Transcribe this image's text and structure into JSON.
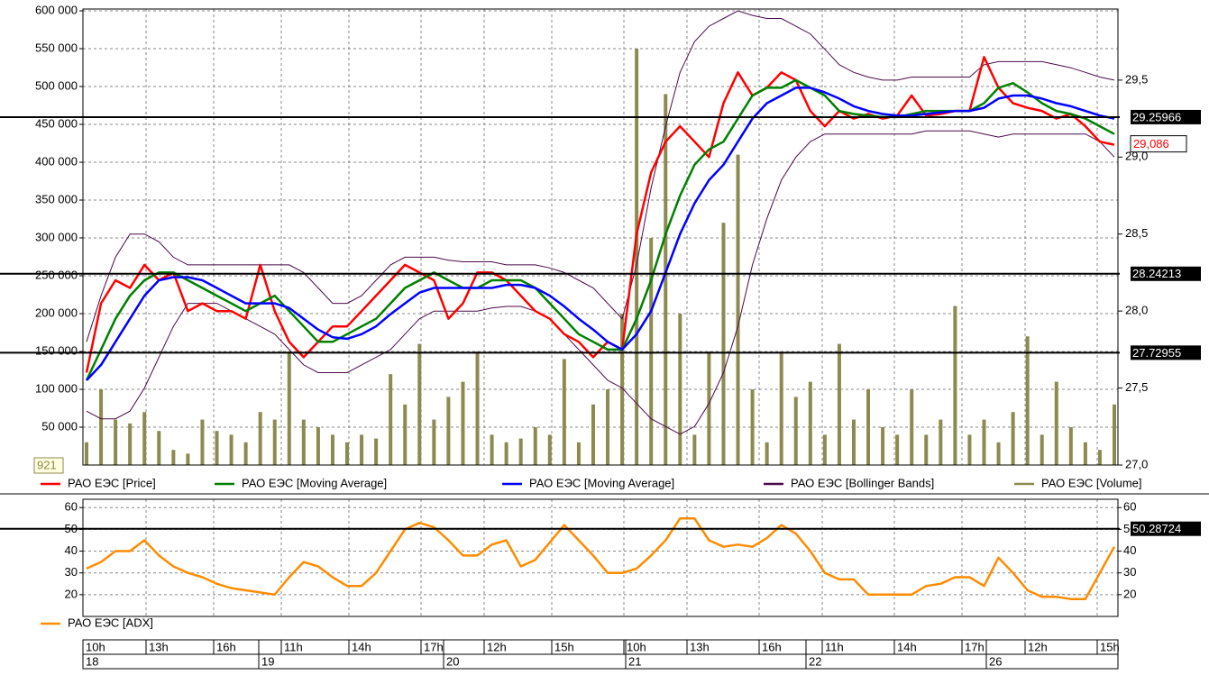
{
  "chart_data": [
    {
      "type": "line",
      "ylim": [
        0,
        600000
      ],
      "yticks": [
        {
          "value": 50000,
          "label": "50 000"
        },
        {
          "value": 100000,
          "label": "100 000"
        },
        {
          "value": 150000,
          "label": "150 000"
        },
        {
          "value": 200000,
          "label": "200 000"
        },
        {
          "value": 250000,
          "label": "250 000"
        },
        {
          "value": 300000,
          "label": "300 000"
        },
        {
          "value": 350000,
          "label": "350 000"
        },
        {
          "value": 400000,
          "label": "400 000"
        },
        {
          "value": 450000,
          "label": "450 000"
        },
        {
          "value": 500000,
          "label": "500 000"
        },
        {
          "value": 550000,
          "label": "550 000"
        },
        {
          "value": 600000,
          "label": "600 000"
        }
      ],
      "y2lim": [
        27.0,
        29.95
      ],
      "y2ticks": [
        {
          "value": 27.0,
          "label": "27,0"
        },
        {
          "value": 27.5,
          "label": "27,5"
        },
        {
          "value": 28.0,
          "label": "28,0"
        },
        {
          "value": 28.5,
          "label": "28,5"
        },
        {
          "value": 29.0,
          "label": "29,0"
        },
        {
          "value": 29.5,
          "label": "29,5"
        }
      ],
      "grid": true,
      "hlines": [
        29.25966,
        28.24213,
        27.72955
      ],
      "last_price": {
        "value": 29.086,
        "label": "29,086"
      },
      "last_volume": 921,
      "series": [
        {
          "name": "РАО ЕЭС [Price]",
          "color": "#ff0000",
          "axis": "y2",
          "values": [
            27.6,
            28.05,
            28.2,
            28.15,
            28.3,
            28.2,
            28.25,
            28.0,
            28.05,
            28.0,
            28.0,
            27.95,
            28.3,
            28.0,
            27.8,
            27.7,
            27.8,
            27.9,
            27.9,
            28.0,
            28.1,
            28.2,
            28.3,
            28.25,
            28.2,
            27.95,
            28.05,
            28.25,
            28.25,
            28.2,
            28.1,
            28.0,
            27.95,
            27.85,
            27.8,
            27.7,
            27.8,
            27.75,
            28.5,
            28.9,
            29.1,
            29.2,
            29.1,
            29.0,
            29.35,
            29.55,
            29.4,
            29.45,
            29.55,
            29.5,
            29.3,
            29.2,
            29.3,
            29.25,
            29.28,
            29.25,
            29.27,
            29.4,
            29.27,
            29.28,
            29.3,
            29.3,
            29.65,
            29.45,
            29.35,
            29.32,
            29.3,
            29.25,
            29.28,
            29.2,
            29.1,
            29.08
          ]
        },
        {
          "name": "РАО ЕЭС [Moving Average]",
          "color": "#008000",
          "axis": "y2",
          "values": [
            27.55,
            27.75,
            27.95,
            28.1,
            28.2,
            28.25,
            28.25,
            28.2,
            28.15,
            28.1,
            28.05,
            28.0,
            28.05,
            28.1,
            28.0,
            27.9,
            27.8,
            27.8,
            27.85,
            27.9,
            27.95,
            28.05,
            28.15,
            28.2,
            28.25,
            28.2,
            28.15,
            28.15,
            28.2,
            28.2,
            28.2,
            28.15,
            28.05,
            27.95,
            27.85,
            27.8,
            27.75,
            27.75,
            27.95,
            28.2,
            28.5,
            28.75,
            28.95,
            29.05,
            29.1,
            29.25,
            29.4,
            29.45,
            29.45,
            29.5,
            29.45,
            29.4,
            29.3,
            29.28,
            29.27,
            29.26,
            29.26,
            29.28,
            29.3,
            29.3,
            29.3,
            29.3,
            29.35,
            29.45,
            29.48,
            29.42,
            29.35,
            29.3,
            29.28,
            29.25,
            29.2,
            29.15
          ]
        },
        {
          "name": "РАО ЕЭС [Moving Average]",
          "color": "#0000ff",
          "axis": "y2",
          "values": [
            27.55,
            27.65,
            27.8,
            27.95,
            28.1,
            28.2,
            28.22,
            28.22,
            28.2,
            28.15,
            28.1,
            28.05,
            28.05,
            28.05,
            28.02,
            27.95,
            27.88,
            27.83,
            27.82,
            27.85,
            27.9,
            27.98,
            28.05,
            28.12,
            28.15,
            28.15,
            28.15,
            28.15,
            28.15,
            28.17,
            28.17,
            28.15,
            28.1,
            28.03,
            27.95,
            27.88,
            27.8,
            27.75,
            27.85,
            28.0,
            28.25,
            28.5,
            28.7,
            28.85,
            28.95,
            29.1,
            29.25,
            29.35,
            29.4,
            29.45,
            29.45,
            29.42,
            29.38,
            29.33,
            29.3,
            29.28,
            29.27,
            29.27,
            29.28,
            29.29,
            29.3,
            29.3,
            29.32,
            29.38,
            29.4,
            29.4,
            29.38,
            29.35,
            29.33,
            29.3,
            29.27,
            29.25
          ]
        },
        {
          "name": "РАО ЕЭС [Bollinger Bands]",
          "color": "#4b0a4b",
          "axis": "y2",
          "type": "band",
          "upper": [
            27.8,
            28.1,
            28.35,
            28.5,
            28.5,
            28.45,
            28.35,
            28.3,
            28.3,
            28.3,
            28.3,
            28.3,
            28.3,
            28.3,
            28.3,
            28.25,
            28.15,
            28.05,
            28.05,
            28.1,
            28.2,
            28.3,
            28.35,
            28.35,
            28.35,
            28.33,
            28.32,
            28.32,
            28.32,
            28.3,
            28.3,
            28.3,
            28.28,
            28.25,
            28.2,
            28.15,
            28.05,
            27.95,
            28.3,
            28.8,
            29.2,
            29.55,
            29.75,
            29.85,
            29.9,
            29.95,
            29.92,
            29.9,
            29.9,
            29.85,
            29.8,
            29.7,
            29.6,
            29.55,
            29.52,
            29.5,
            29.5,
            29.52,
            29.52,
            29.52,
            29.52,
            29.52,
            29.6,
            29.62,
            29.62,
            29.62,
            29.62,
            29.6,
            29.58,
            29.55,
            29.52,
            29.5
          ],
          "lower": [
            27.35,
            27.3,
            27.3,
            27.35,
            27.5,
            27.7,
            27.9,
            28.05,
            28.05,
            28.05,
            28.0,
            27.95,
            27.9,
            27.85,
            27.75,
            27.65,
            27.6,
            27.6,
            27.6,
            27.65,
            27.7,
            27.75,
            27.85,
            27.95,
            28.0,
            28.0,
            28.0,
            28.0,
            28.02,
            28.03,
            28.03,
            28.0,
            27.95,
            27.85,
            27.75,
            27.65,
            27.55,
            27.5,
            27.4,
            27.3,
            27.25,
            27.2,
            27.25,
            27.4,
            27.6,
            27.9,
            28.3,
            28.6,
            28.85,
            29.0,
            29.1,
            29.15,
            29.15,
            29.15,
            29.15,
            29.15,
            29.15,
            29.15,
            29.17,
            29.17,
            29.17,
            29.17,
            29.15,
            29.13,
            29.15,
            29.15,
            29.15,
            29.15,
            29.15,
            29.15,
            29.1,
            29.0
          ]
        },
        {
          "name": "РАО ЕЭС [Volume]",
          "color": "#8c8a4f",
          "axis": "y",
          "type": "bar",
          "values": [
            30000,
            100000,
            60000,
            55000,
            70000,
            45000,
            20000,
            15000,
            60000,
            45000,
            40000,
            30000,
            70000,
            60000,
            150000,
            60000,
            50000,
            40000,
            30000,
            40000,
            35000,
            120000,
            80000,
            160000,
            60000,
            90000,
            110000,
            150000,
            40000,
            30000,
            35000,
            50000,
            40000,
            140000,
            30000,
            80000,
            100000,
            200000,
            550000,
            300000,
            490000,
            200000,
            40000,
            150000,
            320000,
            410000,
            100000,
            30000,
            150000,
            90000,
            110000,
            40000,
            160000,
            60000,
            100000,
            50000,
            40000,
            100000,
            40000,
            60000,
            210000,
            40000,
            60000,
            30000,
            70000,
            170000,
            40000,
            110000,
            50000,
            30000,
            20000,
            80000
          ]
        }
      ]
    },
    {
      "type": "line",
      "ylim": [
        10,
        63
      ],
      "yticks": [
        20,
        30,
        40,
        50,
        60
      ],
      "grid": true,
      "hlines": [
        50.28724
      ],
      "series": [
        {
          "name": "РАО ЕЭС [ADX]",
          "color": "#ff8c00",
          "values": [
            32,
            35,
            40,
            40,
            45,
            38,
            33,
            30,
            28,
            25,
            23,
            22,
            21,
            20,
            28,
            35,
            33,
            28,
            24,
            24,
            30,
            40,
            50,
            53,
            51,
            45,
            38,
            38,
            43,
            45,
            33,
            36,
            44,
            52,
            45,
            38,
            30,
            30,
            32,
            38,
            45,
            55,
            55,
            45,
            42,
            43,
            42,
            46,
            52,
            48,
            40,
            30,
            27,
            27,
            20,
            20,
            20,
            20,
            24,
            25,
            28,
            28,
            24,
            37,
            30,
            22,
            19,
            19,
            18,
            18,
            30,
            42
          ]
        }
      ]
    }
  ],
  "time_axis": {
    "hours": [
      "10h",
      "13h",
      "16h",
      "11h",
      "14h",
      "17h",
      "12h",
      "15h",
      "10h",
      "13h",
      "16h",
      "11h",
      "14h",
      "17h",
      "12h",
      "15h"
    ],
    "days": [
      "18",
      "19",
      "20",
      "21",
      "22",
      "26"
    ]
  }
}
